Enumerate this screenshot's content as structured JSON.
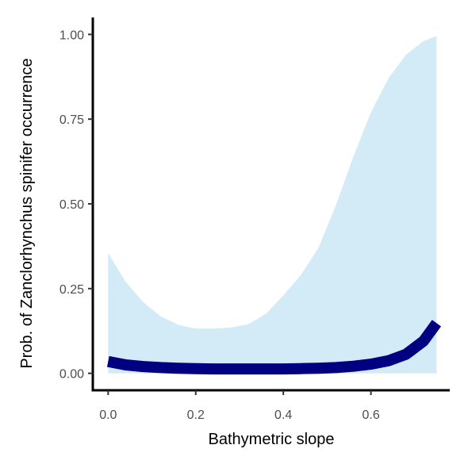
{
  "chart_data": {
    "type": "line",
    "title": "",
    "xlabel": "Bathymetric slope",
    "ylabel": "Prob. of  Zanclorhynchus spinifer  occurrence",
    "xlim": [
      -0.035,
      0.78
    ],
    "ylim": [
      -0.05,
      1.05
    ],
    "x_ticks": [
      0.0,
      0.2,
      0.4,
      0.6
    ],
    "x_tick_labels": [
      "0.0",
      "0.2",
      "0.4",
      "0.6"
    ],
    "y_ticks": [
      0.0,
      0.25,
      0.5,
      0.75,
      1.0
    ],
    "y_tick_labels": [
      "0.00",
      "0.25",
      "0.50",
      "0.75",
      "1.00"
    ],
    "grid": false,
    "legend": "none",
    "series": [
      {
        "role": "fitted",
        "color": "#000080",
        "x": [
          0.0,
          0.04,
          0.08,
          0.12,
          0.16,
          0.2,
          0.24,
          0.28,
          0.32,
          0.36,
          0.4,
          0.44,
          0.48,
          0.52,
          0.56,
          0.6,
          0.64,
          0.68,
          0.72,
          0.75
        ],
        "y": [
          0.035,
          0.025,
          0.02,
          0.017,
          0.015,
          0.014,
          0.013,
          0.013,
          0.013,
          0.013,
          0.013,
          0.014,
          0.015,
          0.017,
          0.021,
          0.027,
          0.037,
          0.056,
          0.095,
          0.148
        ]
      },
      {
        "role": "confidence-band",
        "color": "#d2ebf7",
        "x": [
          0.0,
          0.04,
          0.08,
          0.12,
          0.16,
          0.2,
          0.24,
          0.28,
          0.32,
          0.36,
          0.4,
          0.44,
          0.48,
          0.52,
          0.56,
          0.6,
          0.64,
          0.68,
          0.72,
          0.75
        ],
        "lower": [
          0.0,
          0.0,
          0.0,
          0.0,
          0.0,
          0.0,
          0.0,
          0.0,
          0.0,
          0.0,
          0.0,
          0.0,
          0.0,
          0.0,
          0.0,
          0.0,
          0.0,
          0.0,
          0.0,
          0.0
        ],
        "upper": [
          0.355,
          0.27,
          0.21,
          0.168,
          0.143,
          0.132,
          0.132,
          0.135,
          0.145,
          0.175,
          0.23,
          0.29,
          0.37,
          0.495,
          0.64,
          0.77,
          0.87,
          0.94,
          0.98,
          0.995
        ]
      }
    ]
  }
}
